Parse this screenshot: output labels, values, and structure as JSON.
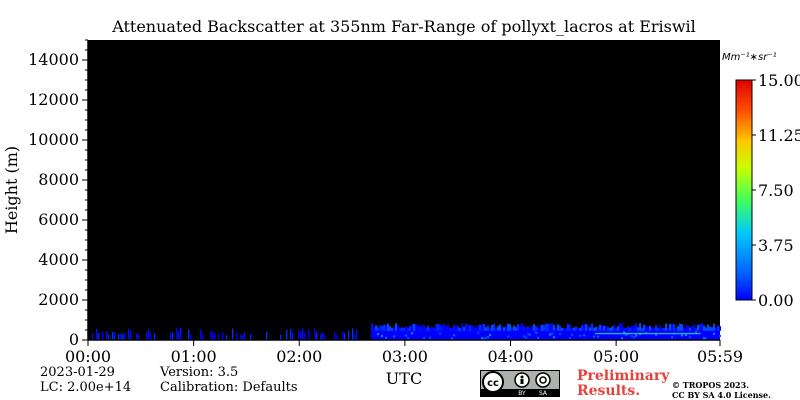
{
  "chart_data": {
    "type": "heatmap",
    "title": "Attenuated Backscatter at 355nm Far-Range of pollyxt_lacros at Eriswil",
    "xlabel": "UTC",
    "ylabel": "Height (m)",
    "xlim_hours": [
      0,
      5.9833
    ],
    "ylim": [
      0,
      15000
    ],
    "x_ticks": [
      {
        "label": "00:00",
        "value": 0
      },
      {
        "label": "01:00",
        "value": 1
      },
      {
        "label": "02:00",
        "value": 2
      },
      {
        "label": "03:00",
        "value": 3
      },
      {
        "label": "04:00",
        "value": 4
      },
      {
        "label": "05:00",
        "value": 5
      },
      {
        "label": "05:59",
        "value": 5.9833
      }
    ],
    "y_ticks": [
      0,
      2000,
      4000,
      6000,
      8000,
      10000,
      12000,
      14000
    ],
    "colorbar": {
      "unit": "Mm⁻¹∗sr⁻¹",
      "ticks": [
        0.0,
        3.75,
        7.5,
        11.25,
        15.0
      ],
      "tick_labels": [
        "0.00",
        "3.75",
        "7.50",
        "11.25",
        "15.00"
      ],
      "range": [
        0,
        15
      ],
      "colormap": "jet"
    },
    "background_color": "#000000",
    "signal_segments": [
      {
        "start_hour": 0.0,
        "end_hour": 2.55,
        "top_height_m": 600,
        "pattern": "intermittent"
      },
      {
        "start_hour": 2.68,
        "end_hour": 5.9833,
        "top_height_m": 800,
        "pattern": "continuous"
      }
    ],
    "grid": false
  },
  "meta": {
    "date": "2023-01-29",
    "lc": "LC: 2.00e+14",
    "version": "Version: 3.5",
    "calibration": "Calibration: Defaults"
  },
  "footer": {
    "preliminary_line1": "Preliminary",
    "preliminary_line2": "Results.",
    "copyright_line1": "© TROPOS 2023.",
    "copyright_line2": "CC BY SA 4.0 License.",
    "cc_labels": [
      "BY",
      "SA"
    ]
  }
}
